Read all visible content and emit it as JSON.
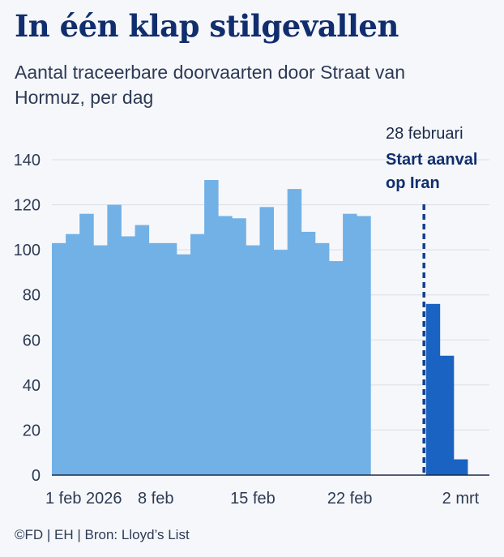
{
  "header": {
    "title": "In één klap stilgevallen",
    "subtitle": "Aantal traceerbare doorvaarten door Straat van Hormuz, per dag"
  },
  "footer": {
    "credit": "©FD | EH | Bron: Lloyd’s List"
  },
  "colors": {
    "before": "#72b1e6",
    "after": "#1a63c2",
    "marker": "#123f8c",
    "grid": "#d9dde5"
  },
  "chart_data": {
    "type": "bar",
    "title": "In één klap stilgevallen",
    "subtitle": "Aantal traceerbare doorvaarten door Straat van Hormuz, per dag",
    "xlabel": "",
    "ylabel": "",
    "ylim": [
      0,
      140
    ],
    "yticks": [
      0,
      20,
      40,
      60,
      80,
      100,
      120,
      140
    ],
    "categories": [
      "1 feb",
      "2 feb",
      "3 feb",
      "4 feb",
      "5 feb",
      "6 feb",
      "7 feb",
      "8 feb",
      "9 feb",
      "10 feb",
      "11 feb",
      "12 feb",
      "13 feb",
      "14 feb",
      "15 feb",
      "16 feb",
      "17 feb",
      "18 feb",
      "19 feb",
      "20 feb",
      "21 feb",
      "22 feb",
      "23 feb",
      "24 feb",
      "25 feb",
      "26 feb",
      "27 feb",
      "28 feb",
      "1 mrt",
      "2 mrt",
      "3 mrt"
    ],
    "values": [
      103,
      107,
      116,
      102,
      120,
      106,
      111,
      103,
      103,
      98,
      107,
      131,
      115,
      114,
      102,
      119,
      100,
      127,
      108,
      103,
      95,
      116,
      115,
      0,
      0,
      0,
      0,
      76,
      53,
      7,
      0
    ],
    "highlight_from_index": 27,
    "x_tick_labels": [
      {
        "index": 0,
        "label": "1 feb 2026"
      },
      {
        "index": 7,
        "label": "8 feb"
      },
      {
        "index": 14,
        "label": "15 feb"
      },
      {
        "index": 21,
        "label": "22 feb"
      },
      {
        "index": 29,
        "label": "2 mrt"
      }
    ],
    "annotation": {
      "index": 27,
      "date_label": "28 februari",
      "event_line1": "Start aanval",
      "event_line2": "op Iran"
    },
    "grid": true
  }
}
